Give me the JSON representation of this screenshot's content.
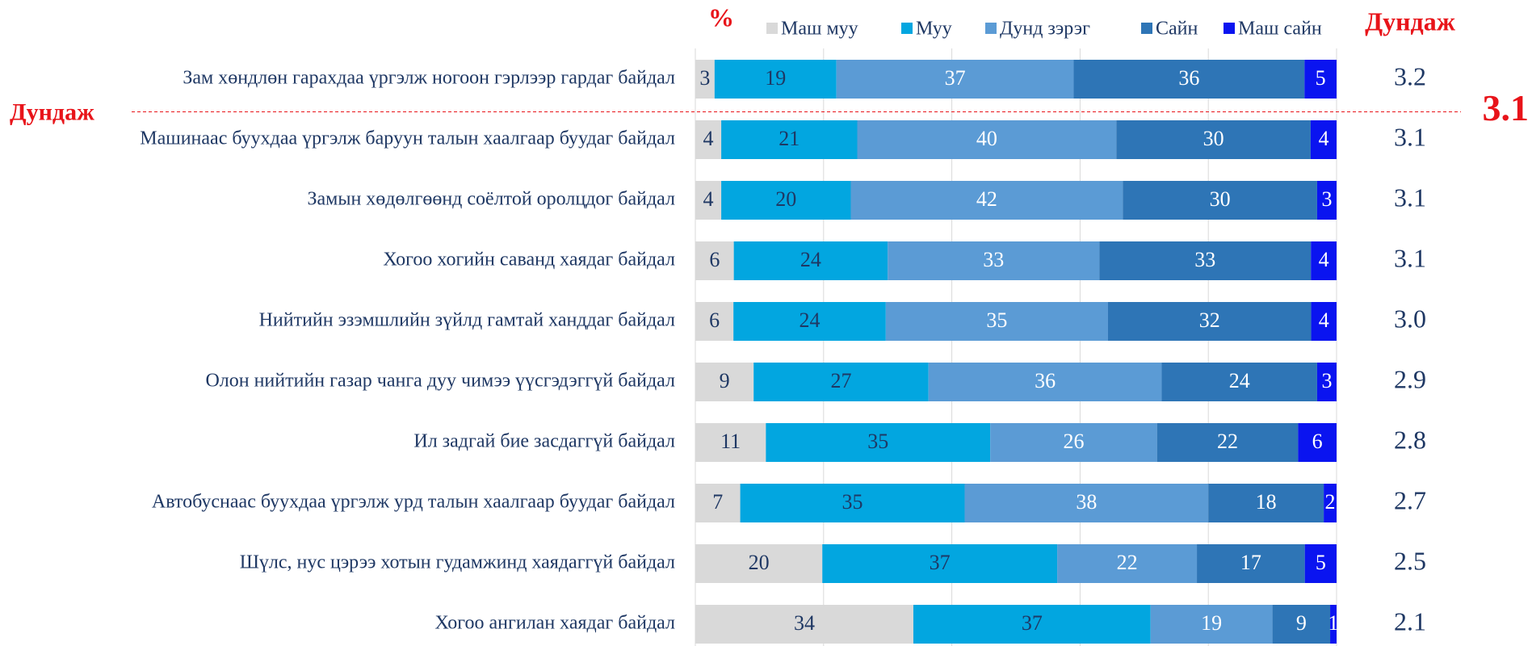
{
  "chart_data": {
    "type": "bar_stacked_percent",
    "orientation": "horizontal",
    "unit_label": "%",
    "average_header": "Дундаж",
    "categories": [
      "Зам хөндлөн гарахдаа үргэлж ногоон гэрлээр гардаг байдал",
      "Машинаас буухдаа үргэлж баруун талын хаалгаар буудаг байдал",
      "Замын хөдөлгөөнд соёлтой оролцдог байдал",
      "Хогоо хогийн саванд хаядаг байдал",
      "Нийтийн эзэмшлийн зүйлд гамтай ханддаг байдал",
      "Олон нийтийн газар чанга дуу чимээ үүсгэдэггүй байдал",
      "Ил задгай бие засдаггүй байдал",
      "Автобуснаас буухдаа үргэлж урд талын хаалгаар буудаг байдал",
      "Шүлс, нус цэрээ хотын гудамжинд хаядаггүй байдал",
      "Хогоо ангилан хаядаг байдал"
    ],
    "series": [
      {
        "name": "Маш муу",
        "color": "#d9d9d9",
        "label_color": "#1f3864",
        "values": [
          3,
          4,
          4,
          6,
          6,
          9,
          11,
          7,
          20,
          34
        ]
      },
      {
        "name": "Муу",
        "color": "#02a6e0",
        "label_color": "#1f3864",
        "values": [
          19,
          21,
          20,
          24,
          24,
          27,
          35,
          35,
          37,
          37
        ]
      },
      {
        "name": "Дунд зэрэг",
        "color": "#5b9bd5",
        "label_color": "#ffffff",
        "values": [
          37,
          40,
          42,
          33,
          35,
          36,
          26,
          38,
          22,
          19
        ]
      },
      {
        "name": "Сайн",
        "color": "#2e75b6",
        "label_color": "#ffffff",
        "values": [
          36,
          30,
          30,
          33,
          32,
          24,
          22,
          18,
          17,
          9
        ]
      },
      {
        "name": "Маш сайн",
        "color": "#0a14f0",
        "label_color": "#ffffff",
        "values": [
          5,
          4,
          3,
          4,
          4,
          3,
          6,
          2,
          5,
          1
        ]
      }
    ],
    "averages": [
      3.2,
      3.1,
      3.1,
      3.1,
      3.0,
      2.9,
      2.8,
      2.7,
      2.5,
      2.1
    ],
    "average_labels": [
      "3.2",
      "3.1",
      "3.1",
      "3.1",
      "3.0",
      "2.9",
      "2.8",
      "2.7",
      "2.5",
      "2.1"
    ],
    "overall_average": {
      "label": "Дундаж",
      "value": 3.1
    },
    "xlim": [
      0,
      100
    ],
    "xticks": [
      0,
      20,
      40,
      60,
      80,
      100
    ],
    "xtick_labels": false,
    "grid": true,
    "legend": "top"
  }
}
